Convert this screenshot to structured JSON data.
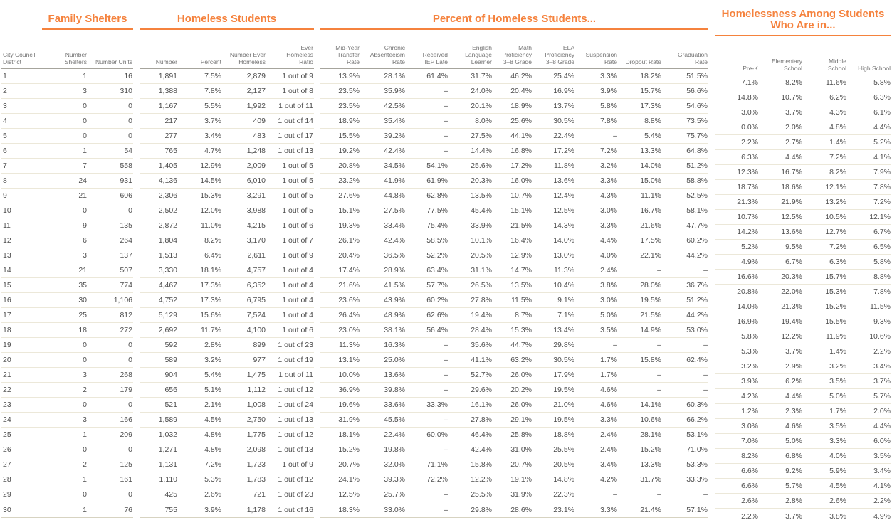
{
  "colors": {
    "accent_orange": "#f5823d",
    "data_text": "#4e4e4e",
    "header_text": "#747474",
    "row_divider": "#ece8d9",
    "header_rule": "#a6a49c",
    "bottom_rule": "#d7d3c1"
  },
  "chart_data": {
    "type": "table",
    "district_header": "City Council District",
    "groups": [
      {
        "id": "family_shelters",
        "title": "Family Shelters"
      },
      {
        "id": "homeless_students",
        "title": "Homeless Students"
      },
      {
        "id": "percent_of_homeless_students",
        "title": "Percent of Homeless Students..."
      },
      {
        "id": "homelessness_among",
        "title": "Homelessness Among Students Who Are in..."
      }
    ],
    "columns": {
      "family_shelters": [
        "Number Shelters",
        "Number Units"
      ],
      "homeless_students": [
        "Number",
        "Percent",
        "Number Ever Homeless",
        "Ever Homeless Ratio"
      ],
      "percent_of_homeless_students": [
        "Mid-Year Transfer Rate",
        "Chronic Absenteeism Rate",
        "Received IEP Late",
        "English Language Learner",
        "Math Proficiency 3–8 Grade",
        "ELA Proficiency 3–8 Grade",
        "Suspension Rate",
        "Dropout Rate",
        "Graduation Rate"
      ],
      "homelessness_among": [
        "Pre-K",
        "Elementary School",
        "Middle School",
        "High School"
      ]
    },
    "rows": [
      {
        "district": "1",
        "family_shelters": [
          "1",
          "16"
        ],
        "homeless_students": [
          "1,891",
          "7.5%",
          "2,879",
          "1 out of 9"
        ],
        "percent_of_homeless_students": [
          "13.9%",
          "28.1%",
          "61.4%",
          "31.7%",
          "46.2%",
          "25.4%",
          "3.3%",
          "18.2%",
          "51.5%"
        ],
        "homelessness_among": [
          "7.1%",
          "8.2%",
          "11.6%",
          "5.8%"
        ]
      },
      {
        "district": "2",
        "family_shelters": [
          "3",
          "310"
        ],
        "homeless_students": [
          "1,388",
          "7.8%",
          "2,127",
          "1 out of 8"
        ],
        "percent_of_homeless_students": [
          "23.5%",
          "35.9%",
          "–",
          "24.0%",
          "20.4%",
          "16.9%",
          "3.9%",
          "15.7%",
          "56.6%"
        ],
        "homelessness_among": [
          "14.8%",
          "10.7%",
          "6.2%",
          "6.3%"
        ]
      },
      {
        "district": "3",
        "family_shelters": [
          "0",
          "0"
        ],
        "homeless_students": [
          "1,167",
          "5.5%",
          "1,992",
          "1 out of 11"
        ],
        "percent_of_homeless_students": [
          "23.5%",
          "42.5%",
          "–",
          "20.1%",
          "18.9%",
          "13.7%",
          "5.8%",
          "17.3%",
          "54.6%"
        ],
        "homelessness_among": [
          "3.0%",
          "3.7%",
          "4.3%",
          "6.1%"
        ]
      },
      {
        "district": "4",
        "family_shelters": [
          "0",
          "0"
        ],
        "homeless_students": [
          "217",
          "3.7%",
          "409",
          "1 out of 14"
        ],
        "percent_of_homeless_students": [
          "18.9%",
          "35.4%",
          "–",
          "8.0%",
          "25.6%",
          "30.5%",
          "7.8%",
          "8.8%",
          "73.5%"
        ],
        "homelessness_among": [
          "0.0%",
          "2.0%",
          "4.8%",
          "4.4%"
        ]
      },
      {
        "district": "5",
        "family_shelters": [
          "0",
          "0"
        ],
        "homeless_students": [
          "277",
          "3.4%",
          "483",
          "1 out of 17"
        ],
        "percent_of_homeless_students": [
          "15.5%",
          "39.2%",
          "–",
          "27.5%",
          "44.1%",
          "22.4%",
          "–",
          "5.4%",
          "75.7%"
        ],
        "homelessness_among": [
          "2.2%",
          "2.7%",
          "1.4%",
          "5.2%"
        ]
      },
      {
        "district": "6",
        "family_shelters": [
          "1",
          "54"
        ],
        "homeless_students": [
          "765",
          "4.7%",
          "1,248",
          "1 out of 13"
        ],
        "percent_of_homeless_students": [
          "19.2%",
          "42.4%",
          "–",
          "14.4%",
          "16.8%",
          "17.2%",
          "7.2%",
          "13.3%",
          "64.8%"
        ],
        "homelessness_among": [
          "6.3%",
          "4.4%",
          "7.2%",
          "4.1%"
        ]
      },
      {
        "district": "7",
        "family_shelters": [
          "7",
          "558"
        ],
        "homeless_students": [
          "1,405",
          "12.9%",
          "2,009",
          "1 out of 5"
        ],
        "percent_of_homeless_students": [
          "20.8%",
          "34.5%",
          "54.1%",
          "25.6%",
          "17.2%",
          "11.8%",
          "3.2%",
          "14.0%",
          "51.2%"
        ],
        "homelessness_among": [
          "12.3%",
          "16.7%",
          "8.2%",
          "7.9%"
        ]
      },
      {
        "district": "8",
        "family_shelters": [
          "24",
          "931"
        ],
        "homeless_students": [
          "4,136",
          "14.5%",
          "6,010",
          "1 out of 5"
        ],
        "percent_of_homeless_students": [
          "23.2%",
          "41.9%",
          "61.9%",
          "20.3%",
          "16.0%",
          "13.6%",
          "3.3%",
          "15.0%",
          "58.8%"
        ],
        "homelessness_among": [
          "18.7%",
          "18.6%",
          "12.1%",
          "7.8%"
        ]
      },
      {
        "district": "9",
        "family_shelters": [
          "21",
          "606"
        ],
        "homeless_students": [
          "2,306",
          "15.3%",
          "3,291",
          "1 out of 5"
        ],
        "percent_of_homeless_students": [
          "27.6%",
          "44.8%",
          "62.8%",
          "13.5%",
          "10.7%",
          "12.4%",
          "4.3%",
          "11.1%",
          "52.5%"
        ],
        "homelessness_among": [
          "21.3%",
          "21.9%",
          "13.2%",
          "7.2%"
        ]
      },
      {
        "district": "10",
        "family_shelters": [
          "0",
          "0"
        ],
        "homeless_students": [
          "2,502",
          "12.0%",
          "3,988",
          "1 out of 5"
        ],
        "percent_of_homeless_students": [
          "15.1%",
          "27.5%",
          "77.5%",
          "45.4%",
          "15.1%",
          "12.5%",
          "3.0%",
          "16.7%",
          "58.1%"
        ],
        "homelessness_among": [
          "10.7%",
          "12.5%",
          "10.5%",
          "12.1%"
        ]
      },
      {
        "district": "11",
        "family_shelters": [
          "9",
          "135"
        ],
        "homeless_students": [
          "2,872",
          "11.0%",
          "4,215",
          "1 out of 6"
        ],
        "percent_of_homeless_students": [
          "19.3%",
          "33.4%",
          "75.4%",
          "33.9%",
          "21.5%",
          "14.3%",
          "3.3%",
          "21.6%",
          "47.7%"
        ],
        "homelessness_among": [
          "14.2%",
          "13.6%",
          "12.7%",
          "6.7%"
        ]
      },
      {
        "district": "12",
        "family_shelters": [
          "6",
          "264"
        ],
        "homeless_students": [
          "1,804",
          "8.2%",
          "3,170",
          "1 out of 7"
        ],
        "percent_of_homeless_students": [
          "26.1%",
          "42.4%",
          "58.5%",
          "10.1%",
          "16.4%",
          "14.0%",
          "4.4%",
          "17.5%",
          "60.2%"
        ],
        "homelessness_among": [
          "5.2%",
          "9.5%",
          "7.2%",
          "6.5%"
        ]
      },
      {
        "district": "13",
        "family_shelters": [
          "3",
          "137"
        ],
        "homeless_students": [
          "1,513",
          "6.4%",
          "2,611",
          "1 out of 9"
        ],
        "percent_of_homeless_students": [
          "20.4%",
          "36.5%",
          "52.2%",
          "20.5%",
          "12.9%",
          "13.0%",
          "4.0%",
          "22.1%",
          "44.2%"
        ],
        "homelessness_among": [
          "4.9%",
          "6.7%",
          "6.3%",
          "5.8%"
        ]
      },
      {
        "district": "14",
        "family_shelters": [
          "21",
          "507"
        ],
        "homeless_students": [
          "3,330",
          "18.1%",
          "4,757",
          "1 out of 4"
        ],
        "percent_of_homeless_students": [
          "17.4%",
          "28.9%",
          "63.4%",
          "31.1%",
          "14.7%",
          "11.3%",
          "2.4%",
          "–",
          "–"
        ],
        "homelessness_among": [
          "16.6%",
          "20.3%",
          "15.7%",
          "8.8%"
        ]
      },
      {
        "district": "15",
        "family_shelters": [
          "35",
          "774"
        ],
        "homeless_students": [
          "4,467",
          "17.3%",
          "6,352",
          "1 out of 4"
        ],
        "percent_of_homeless_students": [
          "21.6%",
          "41.5%",
          "57.7%",
          "26.5%",
          "13.5%",
          "10.4%",
          "3.8%",
          "28.0%",
          "36.7%"
        ],
        "homelessness_among": [
          "20.8%",
          "22.0%",
          "15.3%",
          "7.8%"
        ]
      },
      {
        "district": "16",
        "family_shelters": [
          "30",
          "1,106"
        ],
        "homeless_students": [
          "4,752",
          "17.3%",
          "6,795",
          "1 out of 4"
        ],
        "percent_of_homeless_students": [
          "23.6%",
          "43.9%",
          "60.2%",
          "27.8%",
          "11.5%",
          "9.1%",
          "3.0%",
          "19.5%",
          "51.2%"
        ],
        "homelessness_among": [
          "14.0%",
          "21.3%",
          "15.2%",
          "11.5%"
        ]
      },
      {
        "district": "17",
        "family_shelters": [
          "25",
          "812"
        ],
        "homeless_students": [
          "5,129",
          "15.6%",
          "7,524",
          "1 out of 4"
        ],
        "percent_of_homeless_students": [
          "26.4%",
          "48.9%",
          "62.6%",
          "19.4%",
          "8.7%",
          "7.1%",
          "5.0%",
          "21.5%",
          "44.2%"
        ],
        "homelessness_among": [
          "16.9%",
          "19.4%",
          "15.5%",
          "9.3%"
        ]
      },
      {
        "district": "18",
        "family_shelters": [
          "18",
          "272"
        ],
        "homeless_students": [
          "2,692",
          "11.7%",
          "4,100",
          "1 out of 6"
        ],
        "percent_of_homeless_students": [
          "23.0%",
          "38.1%",
          "56.4%",
          "28.4%",
          "15.3%",
          "13.4%",
          "3.5%",
          "14.9%",
          "53.0%"
        ],
        "homelessness_among": [
          "5.8%",
          "12.2%",
          "11.9%",
          "10.6%"
        ]
      },
      {
        "district": "19",
        "family_shelters": [
          "0",
          "0"
        ],
        "homeless_students": [
          "592",
          "2.8%",
          "899",
          "1 out of 23"
        ],
        "percent_of_homeless_students": [
          "11.3%",
          "16.3%",
          "–",
          "35.6%",
          "44.7%",
          "29.8%",
          "–",
          "–",
          "–"
        ],
        "homelessness_among": [
          "5.3%",
          "3.7%",
          "1.4%",
          "2.2%"
        ]
      },
      {
        "district": "20",
        "family_shelters": [
          "0",
          "0"
        ],
        "homeless_students": [
          "589",
          "3.2%",
          "977",
          "1 out of 19"
        ],
        "percent_of_homeless_students": [
          "13.1%",
          "25.0%",
          "–",
          "41.1%",
          "63.2%",
          "30.5%",
          "1.7%",
          "15.8%",
          "62.4%"
        ],
        "homelessness_among": [
          "3.2%",
          "2.9%",
          "3.2%",
          "3.4%"
        ]
      },
      {
        "district": "21",
        "family_shelters": [
          "3",
          "268"
        ],
        "homeless_students": [
          "904",
          "5.4%",
          "1,475",
          "1 out of 11"
        ],
        "percent_of_homeless_students": [
          "10.0%",
          "13.6%",
          "–",
          "52.7%",
          "26.0%",
          "17.9%",
          "1.7%",
          "–",
          "–"
        ],
        "homelessness_among": [
          "3.9%",
          "6.2%",
          "3.5%",
          "3.7%"
        ]
      },
      {
        "district": "22",
        "family_shelters": [
          "2",
          "179"
        ],
        "homeless_students": [
          "656",
          "5.1%",
          "1,112",
          "1 out of 12"
        ],
        "percent_of_homeless_students": [
          "36.9%",
          "39.8%",
          "–",
          "29.6%",
          "20.2%",
          "19.5%",
          "4.6%",
          "–",
          "–"
        ],
        "homelessness_among": [
          "4.2%",
          "4.4%",
          "5.0%",
          "5.7%"
        ]
      },
      {
        "district": "23",
        "family_shelters": [
          "0",
          "0"
        ],
        "homeless_students": [
          "521",
          "2.1%",
          "1,008",
          "1 out of 24"
        ],
        "percent_of_homeless_students": [
          "19.6%",
          "33.6%",
          "33.3%",
          "16.1%",
          "26.0%",
          "21.0%",
          "4.6%",
          "14.1%",
          "60.3%"
        ],
        "homelessness_among": [
          "1.2%",
          "2.3%",
          "1.7%",
          "2.0%"
        ]
      },
      {
        "district": "24",
        "family_shelters": [
          "3",
          "166"
        ],
        "homeless_students": [
          "1,589",
          "4.5%",
          "2,750",
          "1 out of 13"
        ],
        "percent_of_homeless_students": [
          "31.9%",
          "45.5%",
          "–",
          "27.8%",
          "29.1%",
          "19.5%",
          "3.3%",
          "10.6%",
          "66.2%"
        ],
        "homelessness_among": [
          "3.0%",
          "4.6%",
          "3.5%",
          "4.4%"
        ]
      },
      {
        "district": "25",
        "family_shelters": [
          "1",
          "209"
        ],
        "homeless_students": [
          "1,032",
          "4.8%",
          "1,775",
          "1 out of 12"
        ],
        "percent_of_homeless_students": [
          "18.1%",
          "22.4%",
          "60.0%",
          "46.4%",
          "25.8%",
          "18.8%",
          "2.4%",
          "28.1%",
          "53.1%"
        ],
        "homelessness_among": [
          "7.0%",
          "5.0%",
          "3.3%",
          "6.0%"
        ]
      },
      {
        "district": "26",
        "family_shelters": [
          "0",
          "0"
        ],
        "homeless_students": [
          "1,271",
          "4.8%",
          "2,098",
          "1 out of 13"
        ],
        "percent_of_homeless_students": [
          "15.2%",
          "19.8%",
          "–",
          "42.4%",
          "31.0%",
          "25.5%",
          "2.4%",
          "15.2%",
          "71.0%"
        ],
        "homelessness_among": [
          "8.2%",
          "6.8%",
          "4.0%",
          "3.5%"
        ]
      },
      {
        "district": "27",
        "family_shelters": [
          "2",
          "125"
        ],
        "homeless_students": [
          "1,131",
          "7.2%",
          "1,723",
          "1 out of 9"
        ],
        "percent_of_homeless_students": [
          "20.7%",
          "32.0%",
          "71.1%",
          "15.8%",
          "20.7%",
          "20.5%",
          "3.4%",
          "13.3%",
          "53.3%"
        ],
        "homelessness_among": [
          "6.6%",
          "9.2%",
          "5.9%",
          "3.4%"
        ]
      },
      {
        "district": "28",
        "family_shelters": [
          "1",
          "161"
        ],
        "homeless_students": [
          "1,110",
          "5.3%",
          "1,783",
          "1 out of 12"
        ],
        "percent_of_homeless_students": [
          "24.1%",
          "39.3%",
          "72.2%",
          "12.2%",
          "19.1%",
          "14.8%",
          "4.2%",
          "31.7%",
          "33.3%"
        ],
        "homelessness_among": [
          "6.6%",
          "5.7%",
          "4.5%",
          "4.1%"
        ]
      },
      {
        "district": "29",
        "family_shelters": [
          "0",
          "0"
        ],
        "homeless_students": [
          "425",
          "2.6%",
          "721",
          "1 out of 23"
        ],
        "percent_of_homeless_students": [
          "12.5%",
          "25.7%",
          "–",
          "25.5%",
          "31.9%",
          "22.3%",
          "–",
          "–",
          "–"
        ],
        "homelessness_among": [
          "2.6%",
          "2.8%",
          "2.6%",
          "2.2%"
        ]
      },
      {
        "district": "30",
        "family_shelters": [
          "1",
          "76"
        ],
        "homeless_students": [
          "755",
          "3.9%",
          "1,178",
          "1 out of 16"
        ],
        "percent_of_homeless_students": [
          "18.3%",
          "33.0%",
          "–",
          "29.8%",
          "28.6%",
          "23.1%",
          "3.3%",
          "21.4%",
          "57.1%"
        ],
        "homelessness_among": [
          "2.2%",
          "3.7%",
          "3.8%",
          "4.9%"
        ]
      }
    ]
  }
}
